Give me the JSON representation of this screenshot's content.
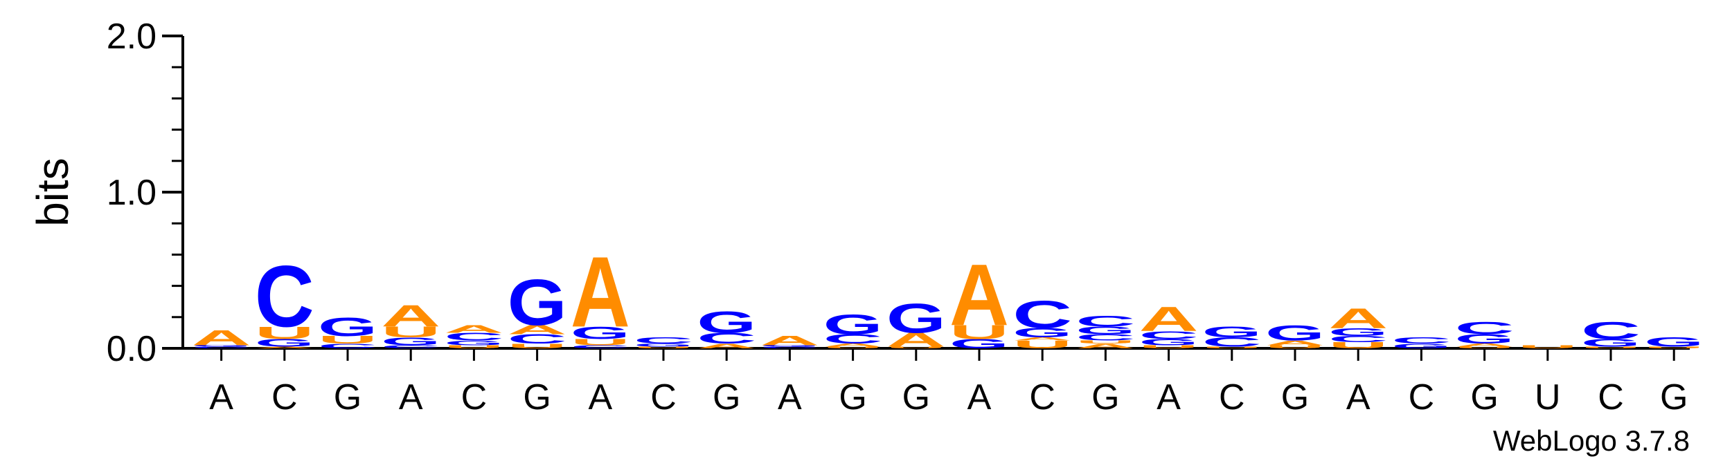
{
  "chart_data": {
    "type": "sequence-logo",
    "ylabel": "bits",
    "ylim": [
      0,
      2.0
    ],
    "yticks": [
      "0.0",
      "1.0",
      "2.0"
    ],
    "colors": {
      "A": "#FF8C00",
      "U": "#FF8C00",
      "C": "#0000FF",
      "G": "#0000FF"
    },
    "consensus": [
      "A",
      "C",
      "G",
      "A",
      "C",
      "G",
      "A",
      "C",
      "G",
      "A",
      "G",
      "G",
      "A",
      "C",
      "G",
      "A",
      "C",
      "G",
      "A",
      "C",
      "G",
      "U",
      "C",
      "G"
    ],
    "positions": [
      [
        [
          "C",
          0.01
        ],
        [
          "G",
          0.01
        ],
        [
          "A",
          0.1
        ]
      ],
      [
        [
          "A",
          0.01
        ],
        [
          "G",
          0.05
        ],
        [
          "U",
          0.08
        ],
        [
          "C",
          0.4
        ]
      ],
      [
        [
          "C",
          0.03
        ],
        [
          "U",
          0.05
        ],
        [
          "G",
          0.12
        ]
      ],
      [
        [
          "C",
          0.02
        ],
        [
          "G",
          0.05
        ],
        [
          "U",
          0.07
        ],
        [
          "A",
          0.14
        ]
      ],
      [
        [
          "U",
          0.02
        ],
        [
          "G",
          0.03
        ],
        [
          "C",
          0.05
        ],
        [
          "A",
          0.05
        ]
      ],
      [
        [
          "U",
          0.03
        ],
        [
          "C",
          0.06
        ],
        [
          "A",
          0.06
        ],
        [
          "G",
          0.3
        ]
      ],
      [
        [
          "C",
          0.02
        ],
        [
          "U",
          0.04
        ],
        [
          "G",
          0.08
        ],
        [
          "A",
          0.46
        ]
      ],
      [
        [
          "U",
          0.01
        ],
        [
          "G",
          0.02
        ],
        [
          "C",
          0.04
        ]
      ],
      [
        [
          "A",
          0.03
        ],
        [
          "C",
          0.07
        ],
        [
          "G",
          0.14
        ]
      ],
      [
        [
          "C",
          0.01
        ],
        [
          "G",
          0.01
        ],
        [
          "A",
          0.06
        ]
      ],
      [
        [
          "U",
          0.01
        ],
        [
          "A",
          0.02
        ],
        [
          "C",
          0.06
        ],
        [
          "G",
          0.13
        ]
      ],
      [
        [
          "U",
          0.01
        ],
        [
          "A",
          0.09
        ],
        [
          "G",
          0.19
        ]
      ],
      [
        [
          "G",
          0.06
        ],
        [
          "U",
          0.09
        ],
        [
          "A",
          0.4
        ]
      ],
      [
        [
          "U",
          0.05
        ],
        [
          "A",
          0.02
        ],
        [
          "G",
          0.06
        ],
        [
          "C",
          0.18
        ]
      ],
      [
        [
          "A",
          0.03
        ],
        [
          "U",
          0.02
        ],
        [
          "C",
          0.04
        ],
        [
          "G",
          0.05
        ],
        [
          "C",
          0.07
        ]
      ],
      [
        [
          "U",
          0.02
        ],
        [
          "G",
          0.04
        ],
        [
          "C",
          0.05
        ],
        [
          "A",
          0.16
        ]
      ],
      [
        [
          "U",
          0.01
        ],
        [
          "C",
          0.06
        ],
        [
          "G",
          0.07
        ]
      ],
      [
        [
          "U",
          0.02
        ],
        [
          "A",
          0.03
        ],
        [
          "G",
          0.1
        ]
      ],
      [
        [
          "U",
          0.04
        ],
        [
          "C",
          0.04
        ],
        [
          "G",
          0.05
        ],
        [
          "A",
          0.13
        ]
      ],
      [
        [
          "G",
          0.03
        ],
        [
          "C",
          0.04
        ]
      ],
      [
        [
          "U",
          0.01
        ],
        [
          "A",
          0.02
        ],
        [
          "G",
          0.06
        ],
        [
          "C",
          0.08
        ]
      ],
      [
        [
          "U",
          0.02
        ]
      ],
      [
        [
          "U",
          0.01
        ],
        [
          "G",
          0.05
        ],
        [
          "C",
          0.11
        ]
      ],
      [
        [
          "U",
          0.01
        ],
        [
          "G",
          0.06
        ]
      ]
    ]
  },
  "credit": "WebLogo 3.7.8"
}
